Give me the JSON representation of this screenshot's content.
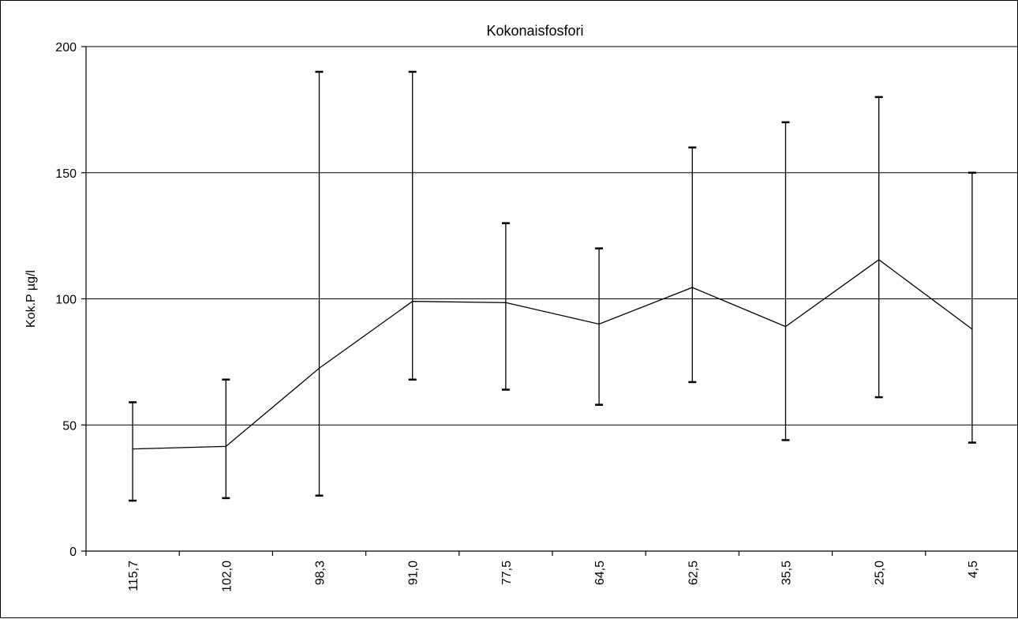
{
  "chart_data": {
    "type": "line",
    "title": "Kokonaisfosfori",
    "xlabel": "",
    "ylabel": "Kok.P µg/l",
    "categories": [
      "115,7",
      "102,0",
      "98,3",
      "91,0",
      "77,5",
      "64,5",
      "62,5",
      "35,5",
      "25,0",
      "4,5"
    ],
    "series": [
      {
        "values": [
          40.5,
          41.5,
          72.5,
          99,
          98.5,
          90,
          104.5,
          89,
          115.5,
          88
        ],
        "error_low": [
          20,
          21,
          22,
          68,
          64,
          58,
          67,
          44,
          61,
          43
        ],
        "error_high": [
          59,
          68,
          190,
          190,
          130,
          120,
          160,
          170,
          180,
          150
        ]
      }
    ],
    "ylim": [
      0,
      200
    ],
    "yticks": [
      0,
      50,
      100,
      150,
      200
    ],
    "grid": true,
    "colors": {
      "line": "#000000",
      "grid": "#000000"
    }
  }
}
